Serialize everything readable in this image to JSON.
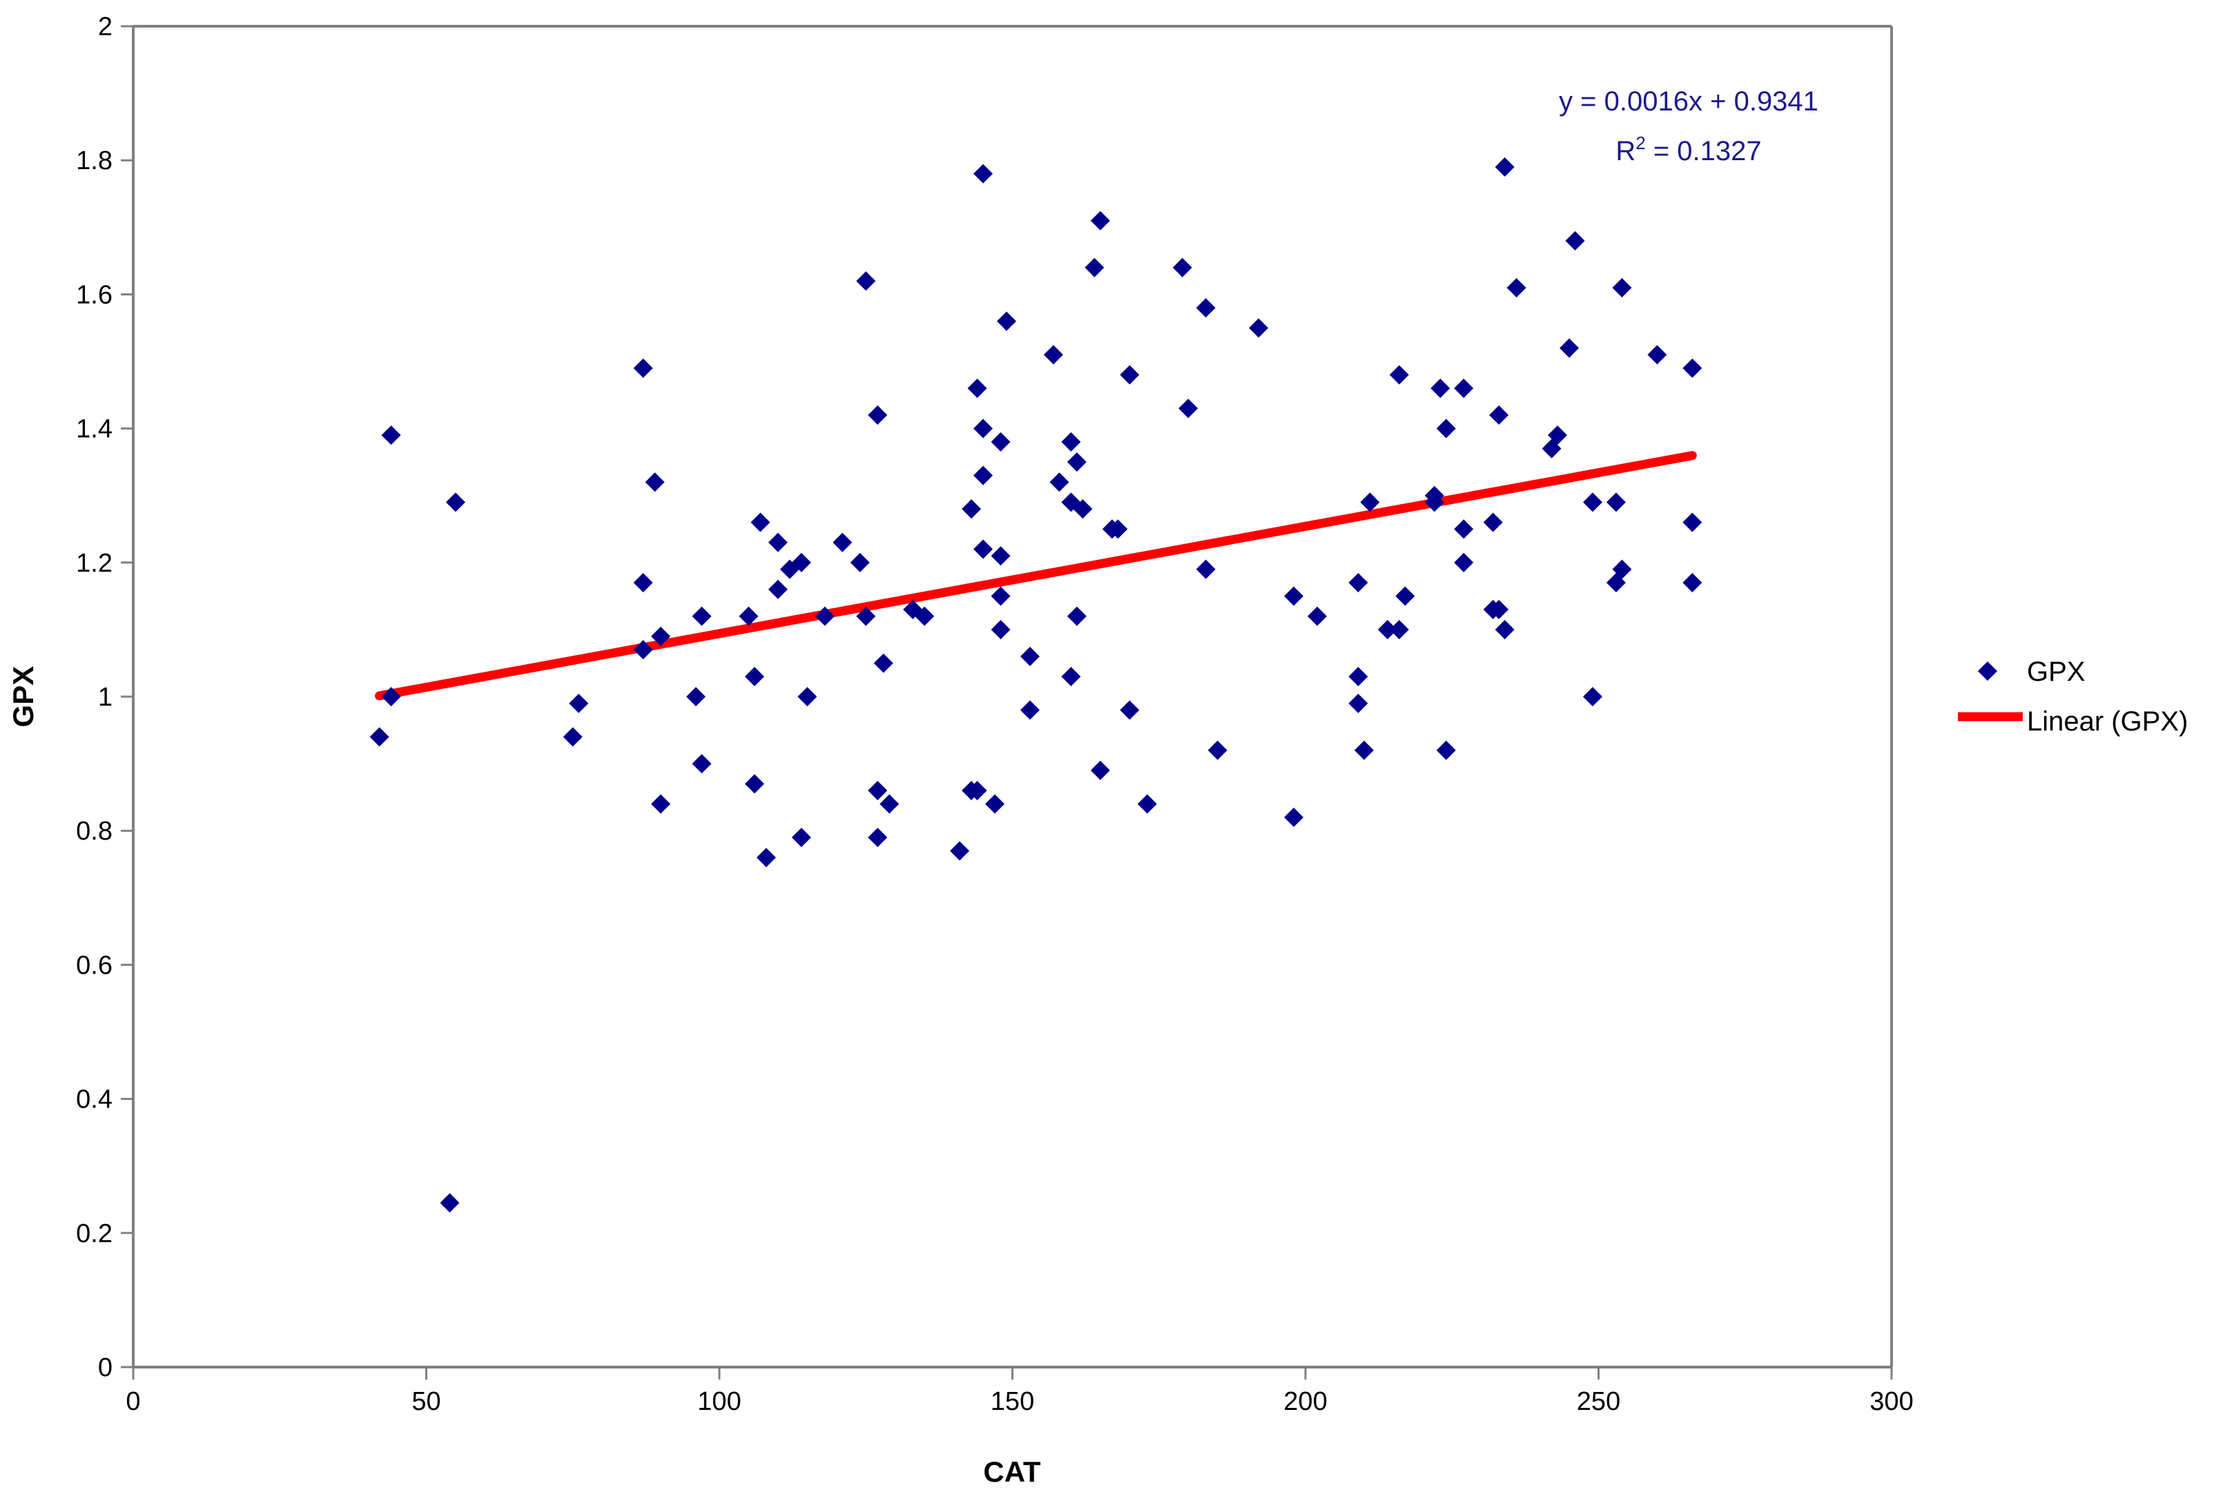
{
  "chart_data": {
    "type": "scatter",
    "xlabel": "CAT",
    "ylabel": "GPX",
    "xlim": [
      0,
      300
    ],
    "ylim": [
      0,
      2
    ],
    "x_ticks": [
      "0",
      "50",
      "100",
      "150",
      "200",
      "250",
      "300"
    ],
    "y_ticks": [
      "0",
      "0.2",
      "0.4",
      "0.6",
      "0.8",
      "1",
      "1.2",
      "1.4",
      "1.6",
      "1.8",
      "2"
    ],
    "grid": false,
    "legend_position": "right",
    "series": [
      {
        "name": "GPX",
        "kind": "scatter",
        "marker": "diamond",
        "color": "#00008b",
        "points": [
          [
            42,
            0.94
          ],
          [
            44,
            1.39
          ],
          [
            44,
            1.0
          ],
          [
            54,
            0.245
          ],
          [
            55,
            1.29
          ],
          [
            75,
            0.94
          ],
          [
            76,
            0.99
          ],
          [
            87,
            1.49
          ],
          [
            87,
            1.17
          ],
          [
            87,
            1.07
          ],
          [
            89,
            1.32
          ],
          [
            90,
            1.09
          ],
          [
            90,
            0.84
          ],
          [
            96,
            1.0
          ],
          [
            97,
            1.12
          ],
          [
            97,
            0.9
          ],
          [
            105,
            1.12
          ],
          [
            106,
            1.03
          ],
          [
            106,
            0.87
          ],
          [
            107,
            1.26
          ],
          [
            108,
            0.76
          ],
          [
            110,
            1.23
          ],
          [
            110,
            1.16
          ],
          [
            112,
            1.19
          ],
          [
            114,
            1.2
          ],
          [
            114,
            0.79
          ],
          [
            115,
            1.0
          ],
          [
            118,
            1.12
          ],
          [
            121,
            1.23
          ],
          [
            124,
            1.2
          ],
          [
            125,
            1.62
          ],
          [
            125,
            1.12
          ],
          [
            127,
            1.42
          ],
          [
            127,
            0.86
          ],
          [
            127,
            0.79
          ],
          [
            128,
            1.05
          ],
          [
            129,
            0.84
          ],
          [
            133,
            1.13
          ],
          [
            135,
            1.12
          ],
          [
            141,
            0.77
          ],
          [
            143,
            1.28
          ],
          [
            143,
            0.86
          ],
          [
            144,
            1.46
          ],
          [
            144,
            0.86
          ],
          [
            145,
            1.78
          ],
          [
            145,
            1.4
          ],
          [
            145,
            1.33
          ],
          [
            145,
            1.22
          ],
          [
            147,
            0.84
          ],
          [
            148,
            1.38
          ],
          [
            148,
            1.21
          ],
          [
            148,
            1.15
          ],
          [
            148,
            1.1
          ],
          [
            149,
            1.56
          ],
          [
            153,
            1.06
          ],
          [
            153,
            0.98
          ],
          [
            157,
            1.51
          ],
          [
            158,
            1.32
          ],
          [
            160,
            1.38
          ],
          [
            160,
            1.29
          ],
          [
            160,
            1.03
          ],
          [
            161,
            1.35
          ],
          [
            161,
            1.12
          ],
          [
            162,
            1.28
          ],
          [
            164,
            1.64
          ],
          [
            165,
            1.71
          ],
          [
            165,
            0.89
          ],
          [
            167,
            1.25
          ],
          [
            168,
            1.25
          ],
          [
            170,
            1.48
          ],
          [
            170,
            0.98
          ],
          [
            173,
            0.84
          ],
          [
            179,
            1.64
          ],
          [
            180,
            1.43
          ],
          [
            183,
            1.58
          ],
          [
            183,
            1.19
          ],
          [
            185,
            0.92
          ],
          [
            192,
            1.55
          ],
          [
            198,
            1.15
          ],
          [
            198,
            0.82
          ],
          [
            202,
            1.12
          ],
          [
            209,
            1.17
          ],
          [
            209,
            1.03
          ],
          [
            209,
            0.99
          ],
          [
            210,
            0.92
          ],
          [
            211,
            1.29
          ],
          [
            214,
            1.1
          ],
          [
            216,
            1.48
          ],
          [
            216,
            1.1
          ],
          [
            217,
            1.15
          ],
          [
            222,
            1.3
          ],
          [
            222,
            1.29
          ],
          [
            223,
            1.46
          ],
          [
            224,
            1.4
          ],
          [
            224,
            0.92
          ],
          [
            227,
            1.46
          ],
          [
            227,
            1.25
          ],
          [
            227,
            1.2
          ],
          [
            232,
            1.26
          ],
          [
            232,
            1.13
          ],
          [
            233,
            1.42
          ],
          [
            233,
            1.13
          ],
          [
            234,
            1.79
          ],
          [
            234,
            1.1
          ],
          [
            236,
            1.61
          ],
          [
            242,
            1.37
          ],
          [
            243,
            1.39
          ],
          [
            245,
            1.52
          ],
          [
            246,
            1.68
          ],
          [
            249,
            1.29
          ],
          [
            249,
            1.0
          ],
          [
            253,
            1.29
          ],
          [
            253,
            1.17
          ],
          [
            254,
            1.61
          ],
          [
            254,
            1.19
          ],
          [
            260,
            1.51
          ],
          [
            266,
            1.49
          ],
          [
            266,
            1.26
          ],
          [
            266,
            1.17
          ]
        ]
      },
      {
        "name": "Linear (GPX)",
        "kind": "line",
        "color": "#ff0000",
        "points": [
          [
            42,
            1.0013
          ],
          [
            266,
            1.3597
          ]
        ]
      }
    ],
    "annotation": {
      "equation": "y = 0.0016x + 0.9341",
      "r2_prefix": "R",
      "r2_sup": "2",
      "r2_value": " = 0.1327"
    }
  }
}
